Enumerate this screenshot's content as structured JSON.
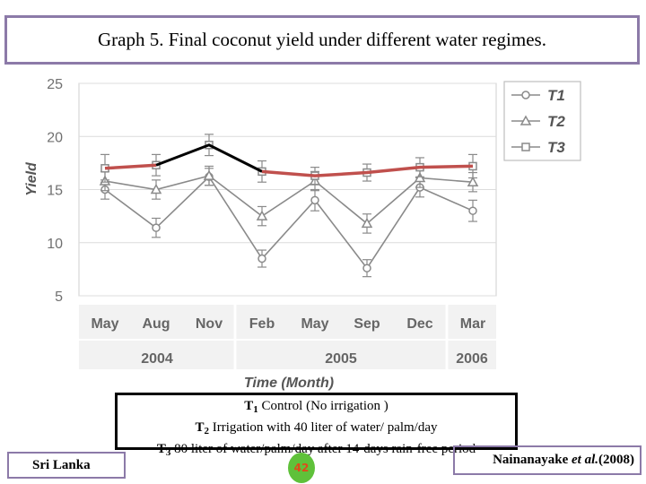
{
  "header": {
    "title": "Graph 5. Final coconut yield under different water regimes."
  },
  "chart_data": {
    "type": "line",
    "ylabel": "Yield",
    "xlabel": "Time (Month)",
    "ylim": [
      5,
      25
    ],
    "yticks": [
      5,
      10,
      15,
      20,
      25
    ],
    "grid": true,
    "legend_position": "top-right",
    "categories": [
      "May",
      "Aug",
      "Nov",
      "Feb",
      "May",
      "Sep",
      "Dec",
      "Mar"
    ],
    "year_labels": [
      {
        "label": "2004",
        "span": [
          0,
          2
        ]
      },
      {
        "label": "2005",
        "span": [
          3,
          6
        ]
      },
      {
        "label": "2006",
        "span": [
          7,
          7
        ]
      }
    ],
    "series": [
      {
        "name": "T1",
        "marker": "circle",
        "values": [
          15.0,
          11.4,
          16.2,
          8.5,
          14.0,
          7.6,
          15.2,
          13.0
        ],
        "errors": [
          0.9,
          0.9,
          0.8,
          0.8,
          1.0,
          0.8,
          0.9,
          1.0
        ]
      },
      {
        "name": "T2",
        "marker": "triangle",
        "values": [
          15.8,
          15.0,
          16.3,
          12.5,
          15.8,
          11.8,
          16.1,
          15.7
        ],
        "errors": [
          0.9,
          0.9,
          0.9,
          0.9,
          0.9,
          0.9,
          0.9,
          0.9
        ]
      },
      {
        "name": "T3",
        "marker": "square",
        "values": [
          17.0,
          17.3,
          19.2,
          16.7,
          16.3,
          16.6,
          17.1,
          17.2
        ],
        "errors": [
          1.3,
          1.0,
          1.0,
          1.0,
          0.8,
          0.8,
          0.9,
          1.1
        ]
      }
    ],
    "series_color": "#8a8a8a",
    "highlight_color": "#c0504d",
    "annotation_color": "#000000"
  },
  "legend": {
    "t1_code": "T",
    "t1_sub": "1",
    "t1_text": "Control (No irrigation )",
    "t2_code": "T",
    "t2_sub": "2",
    "t2_text": "Irrigation with 40 liter of water/ palm/day",
    "t3_code": "T",
    "t3_sub": "3",
    "t3_text": "80 liter of water/palm/day after 14-days rain-free period"
  },
  "footer": {
    "country": "Sri Lanka",
    "citation_author": "Nainanayake",
    "citation_etal": "et al.",
    "citation_year": "(2008)",
    "page_number": "42"
  }
}
